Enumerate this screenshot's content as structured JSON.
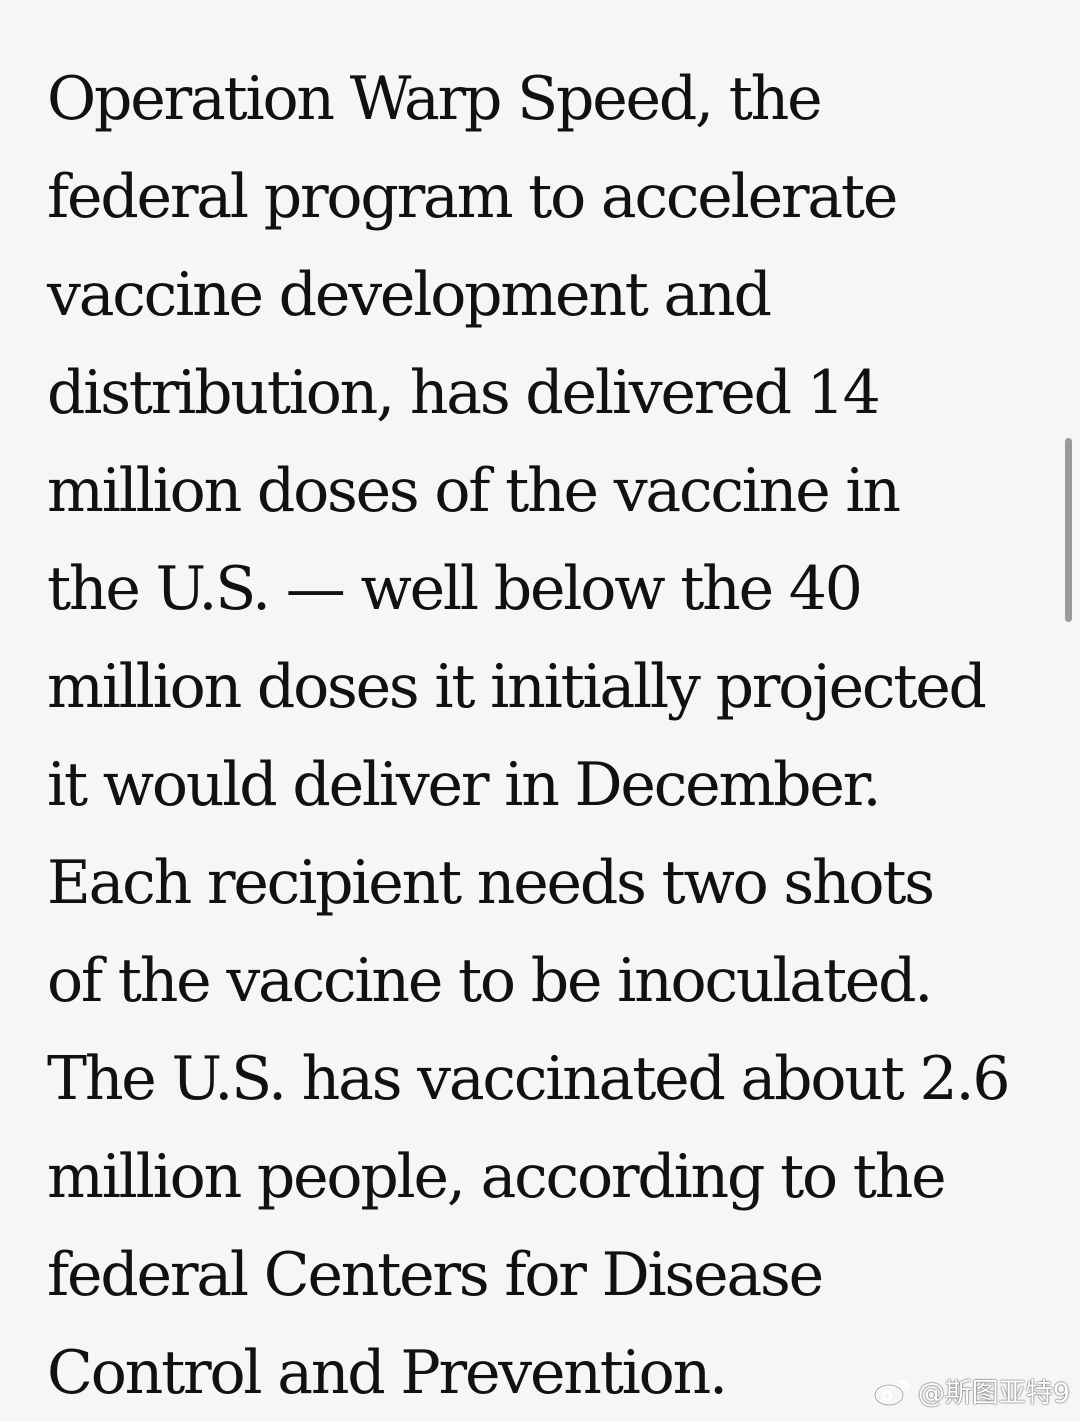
{
  "article": {
    "lines": [
      "Operation Warp Speed, the",
      "federal program to accelerate",
      "vaccine development and",
      "distribution, has delivered 14",
      "million doses of the vaccine in",
      "the U.S. — well below the 40",
      "million doses it initially projected",
      "it would deliver in December.",
      "Each recipient needs two shots",
      "of the vaccine to be inoculated.",
      "The U.S. has vaccinated about 2.6",
      "million people, according to the",
      "federal Centers for Disease",
      "Control and Prevention."
    ]
  },
  "watermark": {
    "icon": "weibo-icon",
    "text": "@斯图亚特9"
  },
  "colors": {
    "background": "#f6f6f6",
    "text": "#111111",
    "scrollbar": "#9a9a9a"
  }
}
